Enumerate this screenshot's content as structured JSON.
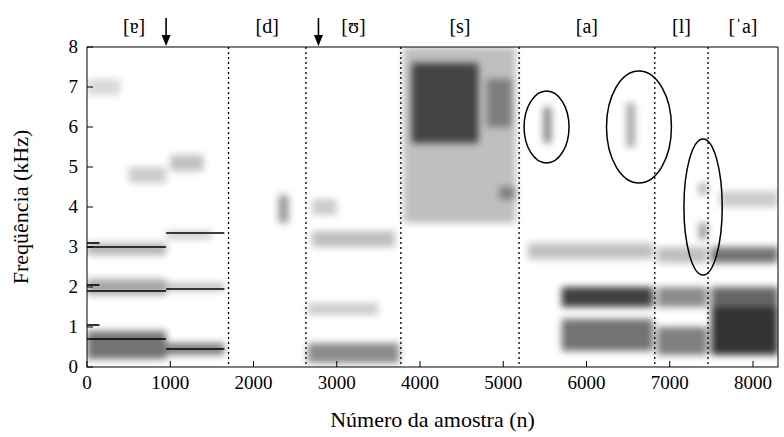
{
  "chart_data": {
    "type": "spectrogram",
    "xlabel": "Número da amostra (n)",
    "ylabel": "Freqüência (kHz)",
    "xlim": [
      0,
      8300
    ],
    "ylim": [
      0,
      8
    ],
    "xticks": [
      0,
      1000,
      2000,
      3000,
      4000,
      5000,
      6000,
      7000,
      8000
    ],
    "yticks": [
      0,
      1,
      2,
      3,
      4,
      5,
      6,
      7,
      8
    ],
    "color": "#000000",
    "segments": [
      {
        "label": "[ɐ]",
        "start": 0,
        "end": 1700
      },
      {
        "label": "[d]",
        "start": 1700,
        "end": 2630
      },
      {
        "label": "[ʊ]",
        "start": 2630,
        "end": 3770
      },
      {
        "label": "[s]",
        "start": 3770,
        "end": 5190
      },
      {
        "label": "[a]",
        "start": 5190,
        "end": 6820
      },
      {
        "label": "[l]",
        "start": 6820,
        "end": 7460
      },
      {
        "label": "[ˈa]",
        "start": 7460,
        "end": 8300
      }
    ],
    "arrows": [
      950,
      2780
    ],
    "formant_lines": [
      {
        "n": [
          0,
          150
        ],
        "f": 3.1
      },
      {
        "n": [
          0,
          150
        ],
        "f": 2.05
      },
      {
        "n": [
          0,
          150
        ],
        "f": 1.05
      },
      {
        "n": [
          0,
          950
        ],
        "f": 3.0
      },
      {
        "n": [
          0,
          950
        ],
        "f": 1.9
      },
      {
        "n": [
          0,
          950
        ],
        "f": 0.7
      },
      {
        "n": [
          950,
          1650
        ],
        "f": 3.35
      },
      {
        "n": [
          950,
          1650
        ],
        "f": 1.95
      },
      {
        "n": [
          950,
          1650
        ],
        "f": 0.45
      }
    ],
    "ellipses": [
      {
        "n": 5520,
        "f": 6.0,
        "rx": 270,
        "ry": 0.9
      },
      {
        "n": 6630,
        "f": 6.0,
        "rx": 390,
        "ry": 1.4
      },
      {
        "n": 7400,
        "f": 4.0,
        "rx": 230,
        "ry": 1.7
      }
    ],
    "energy": [
      {
        "n": [
          0,
          950
        ],
        "f": [
          0.2,
          0.9
        ],
        "level": 0.55
      },
      {
        "n": [
          0,
          950
        ],
        "f": [
          1.8,
          2.2
        ],
        "level": 0.35
      },
      {
        "n": [
          0,
          950
        ],
        "f": [
          2.8,
          3.1
        ],
        "level": 0.3
      },
      {
        "n": [
          500,
          950
        ],
        "f": [
          4.6,
          5.0
        ],
        "level": 0.2
      },
      {
        "n": [
          0,
          400
        ],
        "f": [
          6.8,
          7.2
        ],
        "level": 0.15
      },
      {
        "n": [
          950,
          1650
        ],
        "f": [
          0.3,
          0.6
        ],
        "level": 0.5
      },
      {
        "n": [
          950,
          1650
        ],
        "f": [
          1.9,
          2.1
        ],
        "level": 0.25
      },
      {
        "n": [
          950,
          1500
        ],
        "f": [
          3.2,
          3.4
        ],
        "level": 0.2
      },
      {
        "n": [
          1000,
          1400
        ],
        "f": [
          4.9,
          5.3
        ],
        "level": 0.25
      },
      {
        "n": [
          2300,
          2420
        ],
        "f": [
          3.6,
          4.3
        ],
        "level": 0.4
      },
      {
        "n": [
          2650,
          3750
        ],
        "f": [
          0.1,
          0.6
        ],
        "level": 0.45
      },
      {
        "n": [
          2650,
          3500
        ],
        "f": [
          1.3,
          1.6
        ],
        "level": 0.2
      },
      {
        "n": [
          2700,
          3700
        ],
        "f": [
          3.0,
          3.4
        ],
        "level": 0.25
      },
      {
        "n": [
          2700,
          3000
        ],
        "f": [
          3.8,
          4.2
        ],
        "level": 0.2
      },
      {
        "n": [
          3800,
          5150
        ],
        "f": [
          3.6,
          8.0
        ],
        "level": 0.25
      },
      {
        "n": [
          3900,
          4700
        ],
        "f": [
          5.6,
          7.6
        ],
        "level": 0.65
      },
      {
        "n": [
          4800,
          5100
        ],
        "f": [
          6.0,
          7.2
        ],
        "level": 0.35
      },
      {
        "n": [
          4950,
          5150
        ],
        "f": [
          4.2,
          4.5
        ],
        "level": 0.35
      },
      {
        "n": [
          5700,
          6800
        ],
        "f": [
          0.4,
          1.2
        ],
        "level": 0.55
      },
      {
        "n": [
          5700,
          6800
        ],
        "f": [
          1.5,
          2.0
        ],
        "level": 0.75
      },
      {
        "n": [
          5300,
          6800
        ],
        "f": [
          2.7,
          3.1
        ],
        "level": 0.25
      },
      {
        "n": [
          5480,
          5580
        ],
        "f": [
          5.6,
          6.5
        ],
        "level": 0.45
      },
      {
        "n": [
          6480,
          6580
        ],
        "f": [
          5.5,
          6.6
        ],
        "level": 0.35
      },
      {
        "n": [
          6850,
          7450
        ],
        "f": [
          0.3,
          1.0
        ],
        "level": 0.5
      },
      {
        "n": [
          6850,
          7450
        ],
        "f": [
          1.5,
          2.0
        ],
        "level": 0.45
      },
      {
        "n": [
          6850,
          7450
        ],
        "f": [
          2.6,
          3.0
        ],
        "level": 0.25
      },
      {
        "n": [
          7350,
          7450
        ],
        "f": [
          3.2,
          3.6
        ],
        "level": 0.4
      },
      {
        "n": [
          7350,
          7450
        ],
        "f": [
          4.3,
          4.6
        ],
        "level": 0.3
      },
      {
        "n": [
          7500,
          8300
        ],
        "f": [
          0.3,
          1.5
        ],
        "level": 0.8
      },
      {
        "n": [
          7500,
          8300
        ],
        "f": [
          1.5,
          2.0
        ],
        "level": 0.6
      },
      {
        "n": [
          7500,
          8300
        ],
        "f": [
          2.6,
          3.0
        ],
        "level": 0.55
      },
      {
        "n": [
          7600,
          8300
        ],
        "f": [
          4.0,
          4.4
        ],
        "level": 0.2
      }
    ]
  }
}
